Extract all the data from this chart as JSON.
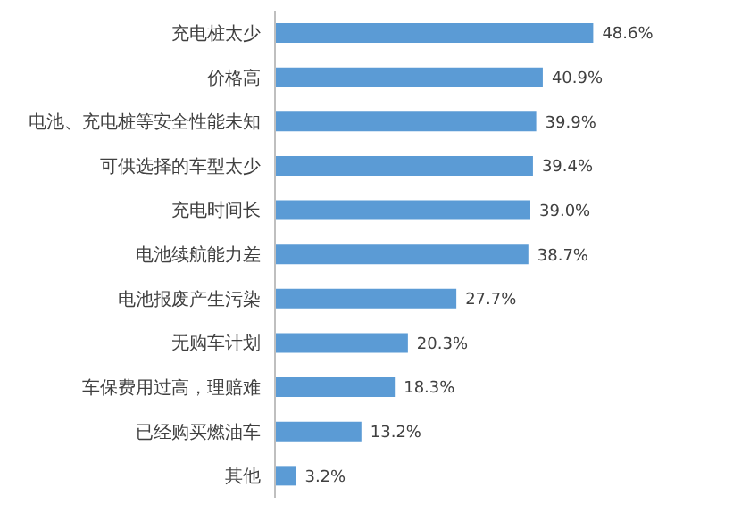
{
  "chart_data": {
    "type": "bar",
    "orientation": "horizontal",
    "categories": [
      "充电桩太少",
      "价格高",
      "电池、充电桩等安全性能未知",
      "可供选择的车型太少",
      "充电时间长",
      "电池续航能力差",
      "电池报废产生污染",
      "无购车计划",
      "车保费用过高，理赔难",
      "已经购买燃油车",
      "其他"
    ],
    "values": [
      48.6,
      40.9,
      39.9,
      39.4,
      39.0,
      38.7,
      27.7,
      20.3,
      18.3,
      13.2,
      3.2
    ],
    "value_labels": [
      "48.6%",
      "40.9%",
      "39.9%",
      "39.4%",
      "39.0%",
      "38.7%",
      "27.7%",
      "20.3%",
      "18.3%",
      "13.2%",
      "3.2%"
    ],
    "color": "#5b9bd5",
    "tick_labels": "y"
  }
}
